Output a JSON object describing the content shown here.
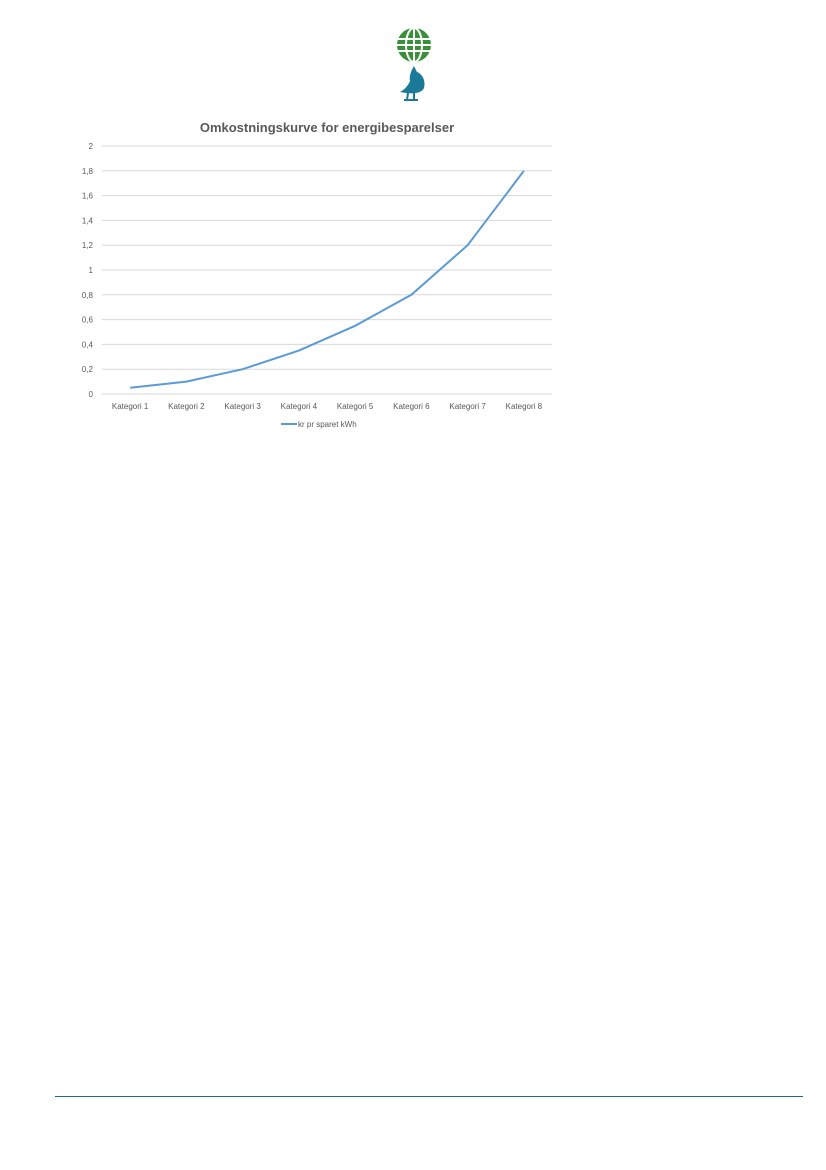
{
  "colors": {
    "series": "#5b9bd5",
    "grid": "#d9d9d9",
    "footer_line": "#1d6a8a",
    "logo_globe": "#3a8f3a",
    "logo_bird": "#1b7a9a"
  },
  "logo": {
    "icon": "globe-and-bird-logo"
  },
  "chart_data": {
    "type": "line",
    "title": "Omkostningskurve for energibesparelser",
    "categories": [
      "Kategori 1",
      "Kategori 2",
      "Kategori 3",
      "Kategori 4",
      "Kategori 5",
      "Kategori 6",
      "Kategori 7",
      "Kategori 8"
    ],
    "series": [
      {
        "name": "kr pr sparet kWh",
        "values": [
          0.05,
          0.1,
          0.2,
          0.35,
          0.55,
          0.8,
          1.2,
          1.8
        ]
      }
    ],
    "yticks": [
      "0",
      "0,2",
      "0,4",
      "0,6",
      "0,8",
      "1",
      "1,2",
      "1,4",
      "1,6",
      "1,8",
      "2"
    ],
    "ylim": [
      0,
      2
    ],
    "grid": true,
    "legend": "bottom"
  }
}
